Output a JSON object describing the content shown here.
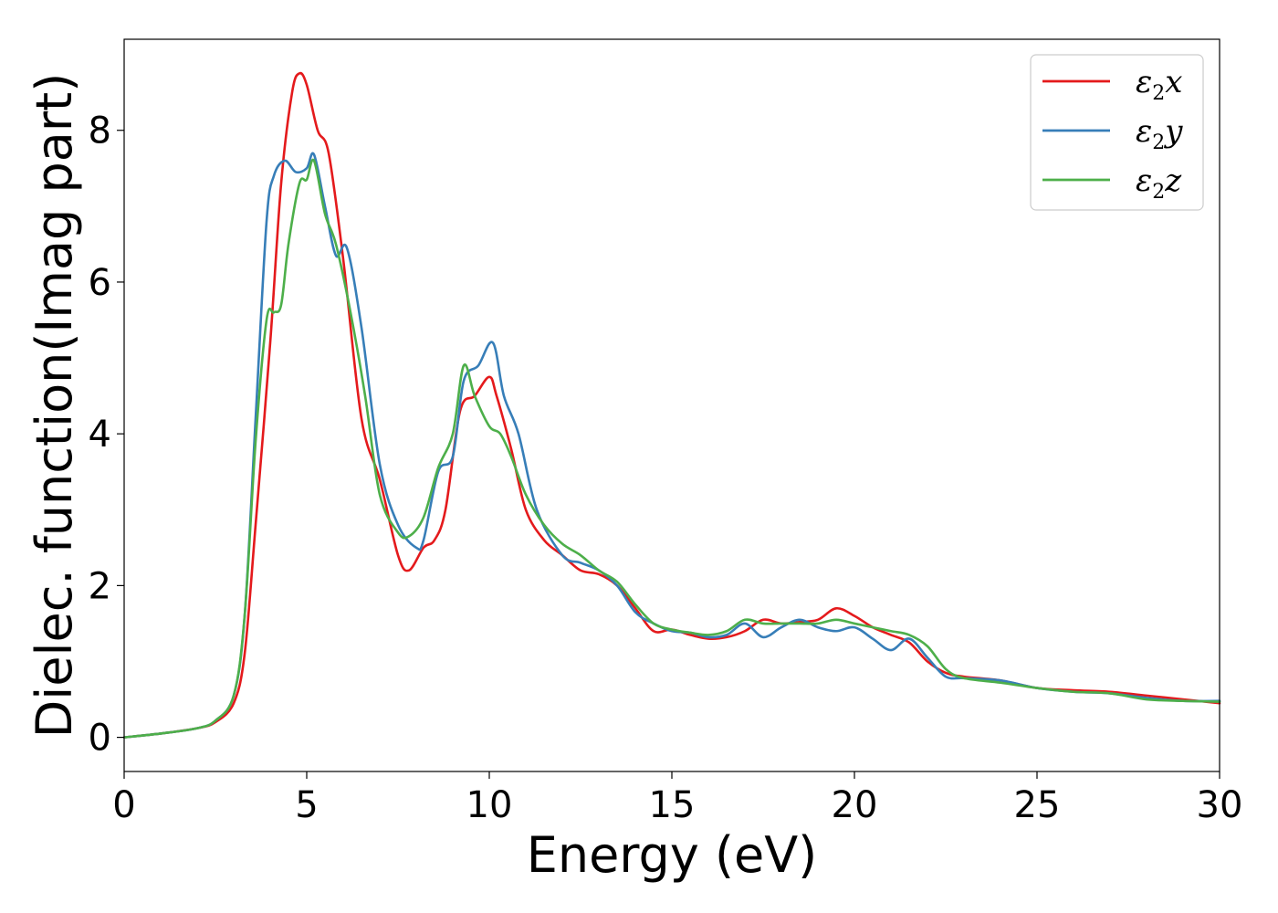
{
  "chart_data": {
    "type": "line",
    "title": "",
    "xlabel": "Energy (eV)",
    "ylabel": "Dielec. function(Imag part)",
    "xlim": [
      0,
      30
    ],
    "ylim": [
      -0.45,
      9.2
    ],
    "xticks": [
      "0",
      "5",
      "10",
      "15",
      "20",
      "25",
      "30"
    ],
    "yticks": [
      "0",
      "2",
      "4",
      "6",
      "8"
    ],
    "grid": false,
    "legend_position": "top-right",
    "series": [
      {
        "name": "ε2x",
        "legend": {
          "base": "ε",
          "sub": "2",
          "tail": "x"
        },
        "color": "#e41a1c",
        "x": [
          0,
          1,
          2,
          2.5,
          3.0,
          3.3,
          3.6,
          4.0,
          4.3,
          4.6,
          4.8,
          5.0,
          5.3,
          5.6,
          6.0,
          6.5,
          7.0,
          7.5,
          7.8,
          8.2,
          8.5,
          8.8,
          9.2,
          9.6,
          10.0,
          10.2,
          10.6,
          11.0,
          11.5,
          12.0,
          12.5,
          13.0,
          13.5,
          14.0,
          14.5,
          15.0,
          15.5,
          16.0,
          16.5,
          17.0,
          17.5,
          18.0,
          18.5,
          19.0,
          19.5,
          20.0,
          20.5,
          21.0,
          21.5,
          22.0,
          22.5,
          23.0,
          24.0,
          25.0,
          26.0,
          27.0,
          28.0,
          29.0,
          30.0
        ],
        "values": [
          0.0,
          0.05,
          0.12,
          0.2,
          0.45,
          1.1,
          2.8,
          5.2,
          7.3,
          8.5,
          8.75,
          8.6,
          8.0,
          7.7,
          6.3,
          4.2,
          3.4,
          2.4,
          2.2,
          2.5,
          2.6,
          3.0,
          4.3,
          4.5,
          4.75,
          4.5,
          3.8,
          3.0,
          2.6,
          2.4,
          2.2,
          2.15,
          2.0,
          1.7,
          1.4,
          1.42,
          1.35,
          1.3,
          1.32,
          1.4,
          1.55,
          1.5,
          1.52,
          1.55,
          1.7,
          1.6,
          1.45,
          1.35,
          1.25,
          1.0,
          0.85,
          0.8,
          0.75,
          0.65,
          0.62,
          0.6,
          0.55,
          0.5,
          0.45
        ]
      },
      {
        "name": "ε2y",
        "legend": {
          "base": "ε",
          "sub": "2",
          "tail": "y"
        },
        "color": "#377eb8",
        "x": [
          0,
          1,
          2,
          2.5,
          3.0,
          3.3,
          3.6,
          3.9,
          4.1,
          4.4,
          4.7,
          5.0,
          5.2,
          5.5,
          5.8,
          6.1,
          6.5,
          7.0,
          7.5,
          8.0,
          8.2,
          8.6,
          9.0,
          9.3,
          9.7,
          10.1,
          10.4,
          10.8,
          11.3,
          12.0,
          12.5,
          13.0,
          13.5,
          14.0,
          14.5,
          15.0,
          15.5,
          16.0,
          16.5,
          17.0,
          17.5,
          18.0,
          18.5,
          19.0,
          19.5,
          20.0,
          20.5,
          21.0,
          21.5,
          22.0,
          22.5,
          23.0,
          24.0,
          25.0,
          26.0,
          27.0,
          28.0,
          29.0,
          30.0
        ],
        "values": [
          0.0,
          0.05,
          0.12,
          0.22,
          0.55,
          1.6,
          4.2,
          6.8,
          7.4,
          7.6,
          7.45,
          7.5,
          7.68,
          7.0,
          6.35,
          6.45,
          5.4,
          3.6,
          2.8,
          2.5,
          2.6,
          3.5,
          3.7,
          4.7,
          4.9,
          5.2,
          4.5,
          4.0,
          3.0,
          2.4,
          2.3,
          2.2,
          2.0,
          1.65,
          1.5,
          1.4,
          1.38,
          1.32,
          1.35,
          1.5,
          1.32,
          1.45,
          1.55,
          1.45,
          1.4,
          1.45,
          1.3,
          1.15,
          1.3,
          1.05,
          0.8,
          0.78,
          0.75,
          0.65,
          0.6,
          0.58,
          0.52,
          0.48,
          0.48
        ]
      },
      {
        "name": "ε2z",
        "legend": {
          "base": "ε",
          "sub": "2",
          "tail": "z"
        },
        "color": "#4daf4a",
        "x": [
          0,
          1,
          2,
          2.5,
          3.0,
          3.3,
          3.6,
          3.9,
          4.1,
          4.3,
          4.5,
          4.8,
          5.0,
          5.2,
          5.5,
          5.8,
          6.2,
          6.6,
          7.0,
          7.5,
          7.8,
          8.2,
          8.6,
          9.0,
          9.3,
          9.6,
          10.0,
          10.3,
          10.6,
          11.0,
          11.5,
          12.0,
          12.5,
          13.0,
          13.5,
          14.0,
          14.5,
          15.0,
          15.5,
          16.0,
          16.5,
          17.0,
          17.5,
          18.0,
          18.5,
          19.0,
          19.5,
          20.0,
          20.5,
          21.0,
          21.5,
          22.0,
          22.5,
          23.0,
          24.0,
          25.0,
          26.0,
          27.0,
          28.0,
          29.0,
          30.0
        ],
        "values": [
          0.0,
          0.05,
          0.12,
          0.22,
          0.55,
          1.6,
          3.9,
          5.5,
          5.6,
          5.7,
          6.5,
          7.3,
          7.35,
          7.6,
          6.9,
          6.5,
          5.6,
          4.5,
          3.2,
          2.7,
          2.65,
          2.9,
          3.55,
          4.0,
          4.9,
          4.5,
          4.1,
          4.0,
          3.7,
          3.2,
          2.8,
          2.55,
          2.4,
          2.2,
          2.05,
          1.75,
          1.5,
          1.42,
          1.38,
          1.35,
          1.4,
          1.55,
          1.5,
          1.5,
          1.5,
          1.5,
          1.55,
          1.5,
          1.45,
          1.4,
          1.35,
          1.2,
          0.9,
          0.78,
          0.72,
          0.65,
          0.6,
          0.58,
          0.5,
          0.48,
          0.47
        ]
      }
    ]
  }
}
